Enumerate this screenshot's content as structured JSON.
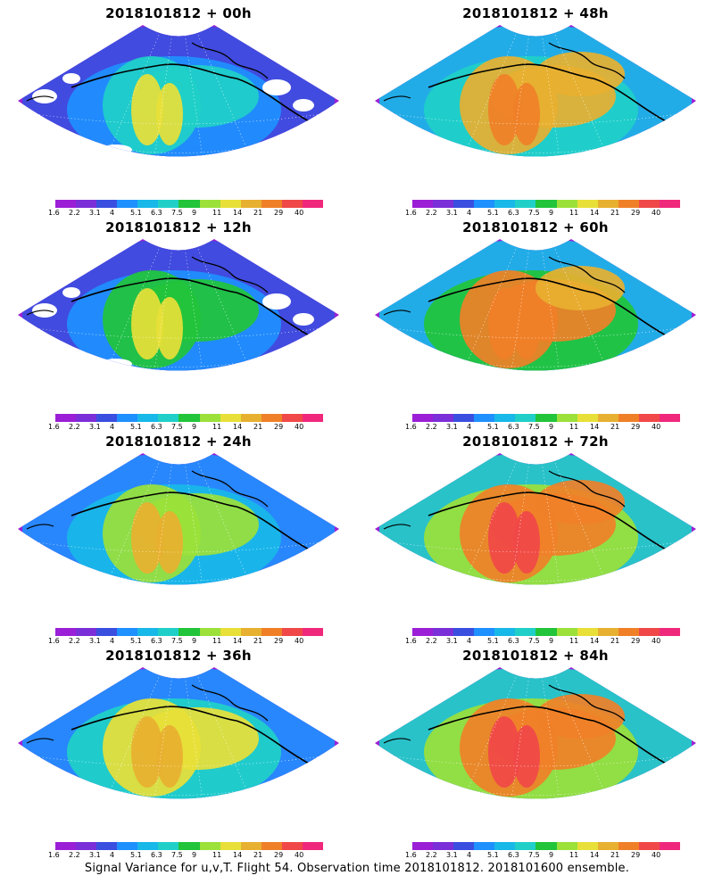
{
  "panels": [
    {
      "title": "2018101812 + 00h",
      "intensity": 0
    },
    {
      "title": "2018101812 + 48h",
      "intensity": 4
    },
    {
      "title": "2018101812 + 12h",
      "intensity": 1
    },
    {
      "title": "2018101812 + 60h",
      "intensity": 5
    },
    {
      "title": "2018101812 + 24h",
      "intensity": 2
    },
    {
      "title": "2018101812 + 72h",
      "intensity": 6
    },
    {
      "title": "2018101812 + 36h",
      "intensity": 3
    },
    {
      "title": "2018101812 + 84h",
      "intensity": 7
    }
  ],
  "colorbar": {
    "labels": [
      "1.6",
      "2.2",
      "3.1",
      "4",
      "5.1",
      "6.3",
      "7.5",
      "9",
      "11",
      "14",
      "21",
      "29",
      "40"
    ],
    "colors": [
      "#9b1fd6",
      "#7b2fd8",
      "#3a4fe0",
      "#1e90ff",
      "#18b8e8",
      "#20d0c8",
      "#22c43a",
      "#9be13a",
      "#e8e038",
      "#e8b030",
      "#f08028",
      "#f04848",
      "#f0287c"
    ]
  },
  "footer": "Signal Variance for u,v,T. Flight 54. Observation time 2018101812. 2018101600 ensemble."
}
